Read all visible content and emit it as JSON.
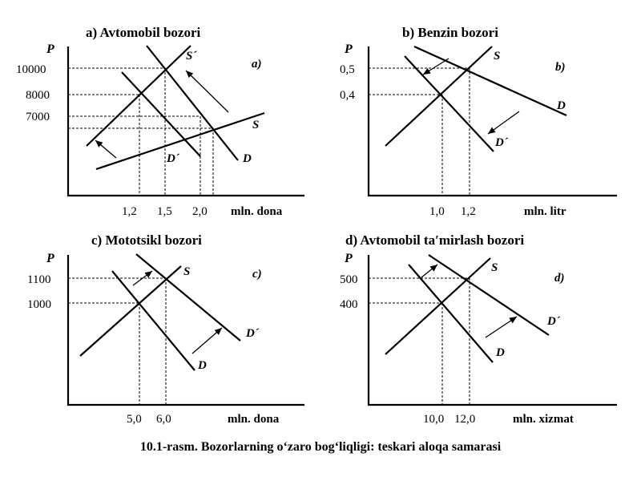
{
  "caption": "10.1-rasm. Bozorlarning o‘zaro bog‘liqligi: teskari aloqa samarasi",
  "panels": [
    {
      "title": "a) Avtomobil bozori",
      "corner_label": "a)",
      "y_axis_label": "P",
      "x_axis_label": "mln. dona",
      "y_ticks": [
        "10000",
        "8000",
        "7000"
      ],
      "x_ticks": [
        "1,2",
        "1,5",
        "2,0"
      ],
      "curves": [
        "S´",
        "S",
        "D´",
        "D"
      ]
    },
    {
      "title": "b) Benzin bozori",
      "corner_label": "b)",
      "y_axis_label": "P",
      "x_axis_label": "mln. litr",
      "y_ticks": [
        "0,5",
        "0,4"
      ],
      "x_ticks": [
        "1,0",
        "1,2"
      ],
      "curves": [
        "S",
        "D",
        "D´"
      ]
    },
    {
      "title": "c) Mototsikl bozori",
      "corner_label": "c)",
      "y_axis_label": "P",
      "x_axis_label": "mln. dona",
      "y_ticks": [
        "1100",
        "1000"
      ],
      "x_ticks": [
        "5,0",
        "6,0"
      ],
      "curves": [
        "S",
        "D´",
        "D"
      ]
    },
    {
      "title": "d) Avtomobil ta′mirlash bozori",
      "corner_label": "d)",
      "y_axis_label": "P",
      "x_axis_label": "mln. xizmat",
      "y_ticks": [
        "500",
        "400"
      ],
      "x_ticks": [
        "10,0",
        "12,0"
      ],
      "curves": [
        "S",
        "D´",
        "D"
      ]
    }
  ]
}
